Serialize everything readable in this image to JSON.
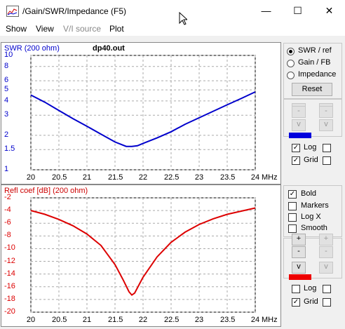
{
  "window": {
    "title": "/Gain/SWR/Impedance (F5)",
    "minimize": "—",
    "maximize": "☐",
    "close": "✕"
  },
  "menu": [
    "Show",
    "View",
    "V/I source",
    "Plot"
  ],
  "menu_disabled": [
    false,
    false,
    true,
    false
  ],
  "top_plot": {
    "title": "SWR (200 ohm)",
    "filename": "dp40.out",
    "color": "#0000cc",
    "y_labels": [
      "10",
      "8",
      "6",
      "5",
      "4",
      "3",
      "2",
      "1.5",
      "1"
    ],
    "x_labels": [
      "20",
      "20.5",
      "21",
      "21.5",
      "22",
      "22.5",
      "23",
      "23.5",
      "24"
    ],
    "x_unit": "MHz"
  },
  "bottom_plot": {
    "title": "Refl coef [dB] (200 ohm)",
    "color": "#dd0000",
    "y_labels": [
      "-2",
      "-4",
      "-6",
      "-8",
      "-10",
      "-12",
      "-14",
      "-16",
      "-18",
      "-20"
    ],
    "x_labels": [
      "20",
      "20.5",
      "21",
      "21.5",
      "22",
      "22.5",
      "23",
      "23.5",
      "24"
    ],
    "x_unit": "MHz"
  },
  "chart_data": [
    {
      "type": "line",
      "title": "SWR (200 ohm)",
      "xlabel": "MHz",
      "ylabel": "",
      "scale": "log",
      "ylim": [
        1,
        10
      ],
      "xlim": [
        20,
        24
      ],
      "grid": true,
      "series": [
        {
          "name": "SWR (200 ohm)",
          "x": [
            20.0,
            20.25,
            20.5,
            20.75,
            21.0,
            21.25,
            21.5,
            21.7,
            21.8,
            21.9,
            22.0,
            22.25,
            22.5,
            22.75,
            23.0,
            23.25,
            23.5,
            23.75,
            24.0
          ],
          "y": [
            4.5,
            3.9,
            3.3,
            2.8,
            2.4,
            2.05,
            1.75,
            1.6,
            1.6,
            1.62,
            1.7,
            1.9,
            2.15,
            2.5,
            2.85,
            3.25,
            3.7,
            4.2,
            4.8
          ]
        }
      ]
    },
    {
      "type": "line",
      "title": "Refl coef [dB] (200 ohm)",
      "xlabel": "MHz",
      "ylabel": "",
      "ylim": [
        -20,
        -2
      ],
      "xlim": [
        20,
        24
      ],
      "grid": true,
      "series": [
        {
          "name": "Refl coef [dB] (200 ohm)",
          "x": [
            20.0,
            20.25,
            20.5,
            20.75,
            21.0,
            21.25,
            21.5,
            21.65,
            21.75,
            21.8,
            21.85,
            22.0,
            22.25,
            22.5,
            22.75,
            23.0,
            23.25,
            23.5,
            23.75,
            24.0
          ],
          "y": [
            -4.0,
            -4.6,
            -5.4,
            -6.4,
            -7.7,
            -9.5,
            -12.5,
            -15.0,
            -16.8,
            -17.3,
            -17.0,
            -14.5,
            -11.3,
            -9.0,
            -7.4,
            -6.2,
            -5.3,
            -4.6,
            -4.1,
            -3.6
          ]
        }
      ]
    }
  ],
  "side_top": {
    "radio_swr": "SWR / ref",
    "radio_gain": "Gain / FB",
    "radio_imp": "Impedance",
    "reset": "Reset",
    "minus": "-",
    "up": "^",
    "down": "v",
    "log": "Log",
    "grid": "Grid",
    "swatch_color": "#0000dd"
  },
  "side_bottom": {
    "bold": "Bold",
    "markers": "Markers",
    "logx": "Log X",
    "smooth": "Smooth",
    "plus": "+",
    "minus": "-",
    "down": "v",
    "log": "Log",
    "grid": "Grid",
    "swatch_color": "#ee0000"
  }
}
